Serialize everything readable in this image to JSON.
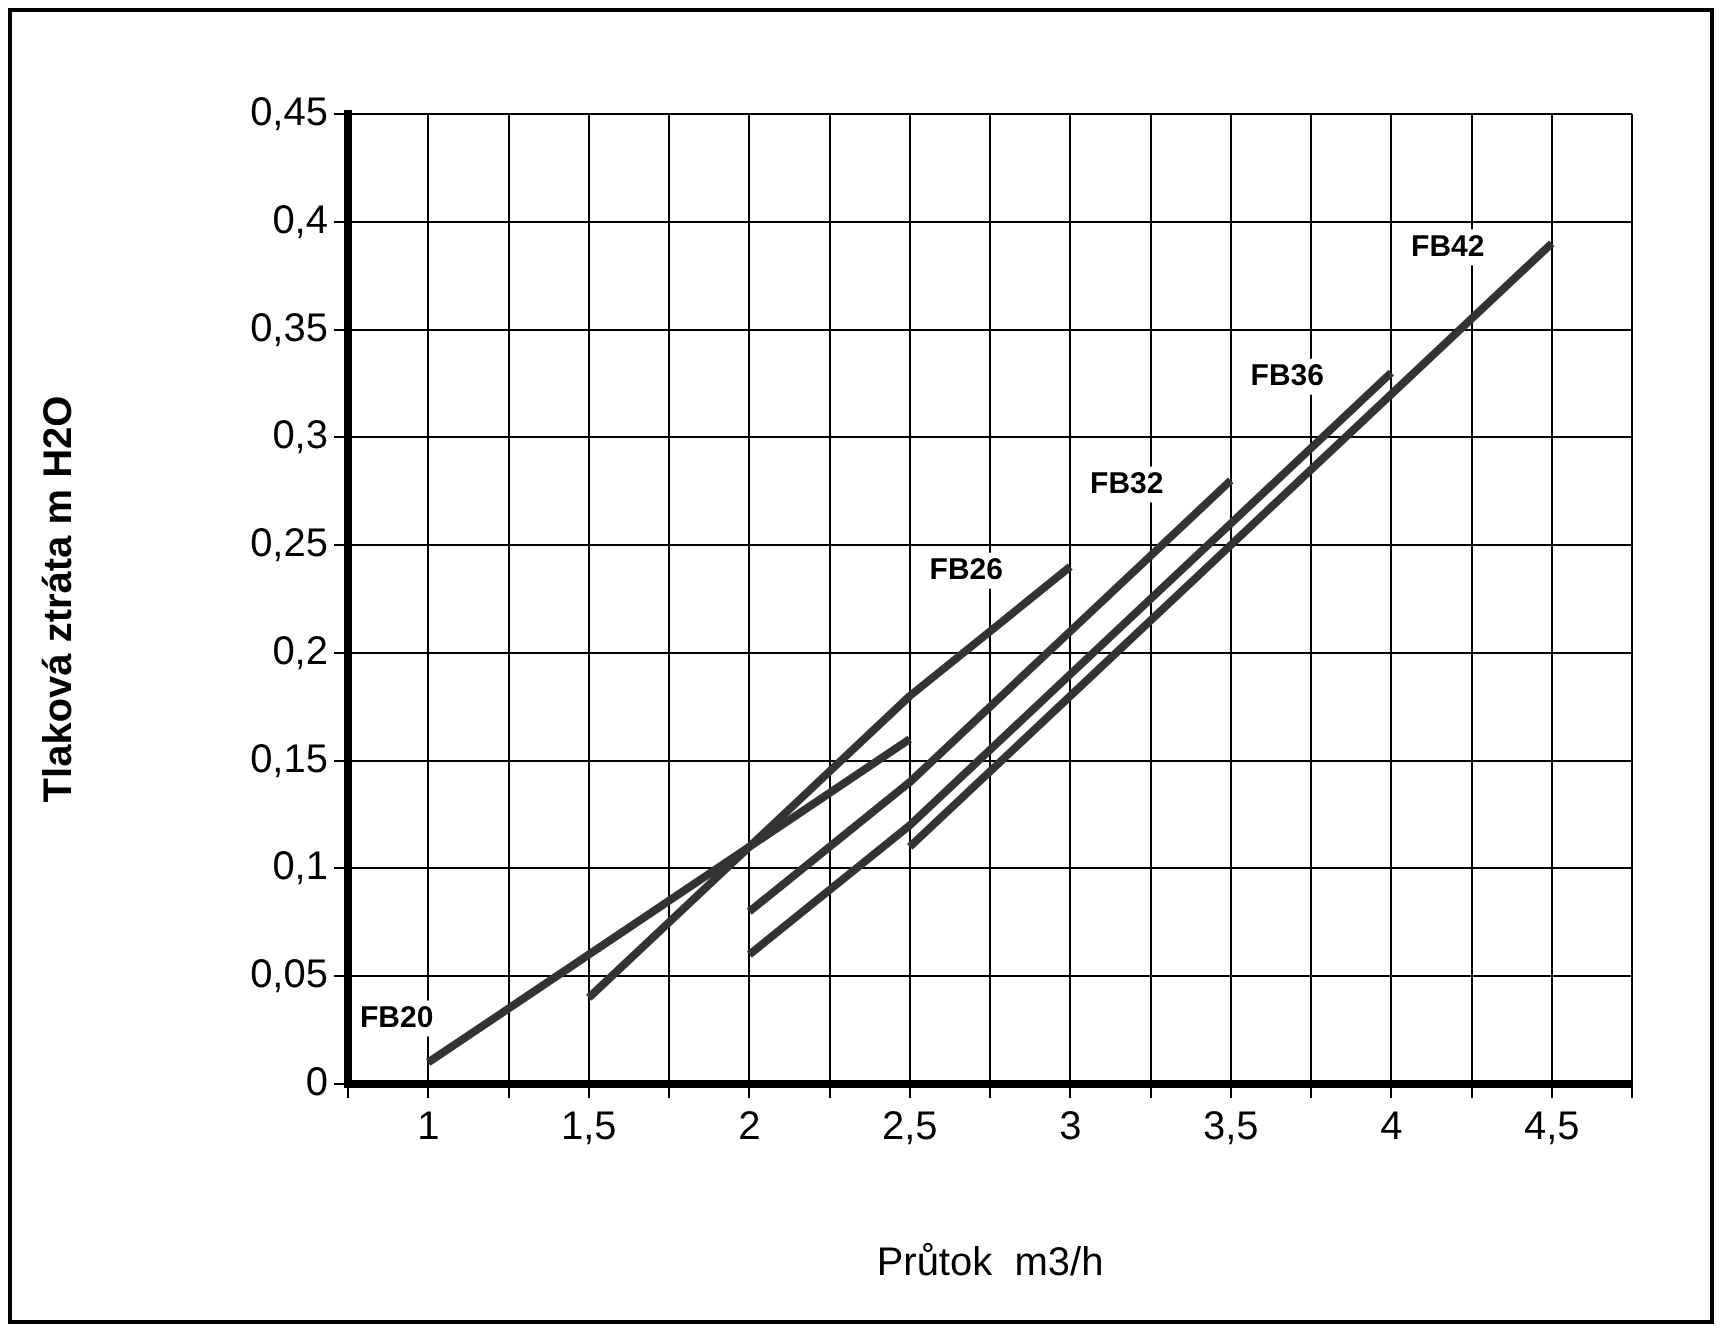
{
  "chart_data": {
    "type": "line",
    "xlabel": "Průtok  m3/h",
    "ylabel": "Tlaková ztráta m H2O",
    "xlim": [
      0.75,
      4.75
    ],
    "xticks": [
      {
        "value": 0.75,
        "label": null
      },
      {
        "value": 1,
        "label": "1"
      },
      {
        "value": 1.25,
        "label": null
      },
      {
        "value": 1.5,
        "label": "1,5"
      },
      {
        "value": 1.75,
        "label": null
      },
      {
        "value": 2,
        "label": "2"
      },
      {
        "value": 2.25,
        "label": null
      },
      {
        "value": 2.5,
        "label": "2,5"
      },
      {
        "value": 2.75,
        "label": null
      },
      {
        "value": 3,
        "label": "3"
      },
      {
        "value": 3.25,
        "label": null
      },
      {
        "value": 3.5,
        "label": "3,5"
      },
      {
        "value": 3.75,
        "label": null
      },
      {
        "value": 4,
        "label": "4"
      },
      {
        "value": 4.25,
        "label": null
      },
      {
        "value": 4.5,
        "label": "4,5"
      },
      {
        "value": 4.75,
        "label": null
      }
    ],
    "ylim": [
      0,
      0.45
    ],
    "yticks": [
      0,
      {
        "value": 0.05,
        "label": "0,05"
      },
      {
        "value": 0.1,
        "label": "0,1"
      },
      {
        "value": 0.15,
        "label": "0,15"
      },
      {
        "value": 0.2,
        "label": "0,2"
      },
      {
        "value": 0.25,
        "label": "0,25"
      },
      {
        "value": 0.3,
        "label": "0,3"
      },
      {
        "value": 0.35,
        "label": "0,35"
      },
      {
        "value": 0.4,
        "label": "0,4"
      },
      {
        "value": 0.45,
        "label": "0,45"
      }
    ],
    "grid": true,
    "legend": false,
    "marker": "none",
    "line_style": "solid",
    "series": [
      {
        "color": "#333333",
        "x": [
          1,
          1.5,
          2,
          2.5
        ],
        "values": [
          0.01,
          0.06,
          0.11,
          0.16
        ]
      },
      {
        "color": "#333333",
        "x": [
          1.5,
          2,
          2.5,
          3
        ],
        "values": [
          0.04,
          0.11,
          0.18,
          0.24
        ]
      },
      {
        "color": "#333333",
        "x": [
          2,
          2.5,
          3,
          3.5
        ],
        "values": [
          0.08,
          0.14,
          0.21,
          0.28
        ]
      },
      {
        "color": "#333333",
        "x": [
          2,
          2.5,
          3,
          3.5,
          4
        ],
        "values": [
          0.06,
          0.12,
          0.19,
          0.26,
          0.33
        ]
      },
      {
        "color": "#333333",
        "x": [
          2.5,
          3,
          3.5,
          4,
          4.5
        ],
        "values": [
          0.11,
          0.18,
          0.25,
          0.32,
          0.39
        ]
      }
    ],
    "annotations": [
      {
        "text": "FB20",
        "x": 1,
        "y": 0.01
      },
      {
        "text": "FB26",
        "x": 3,
        "y": 0.24
      },
      {
        "text": "FB32",
        "x": 3.5,
        "y": 0.28
      },
      {
        "text": "FB36",
        "x": 4,
        "y": 0.33
      },
      {
        "text": "FB42",
        "x": 4.5,
        "y": 0.39
      }
    ]
  }
}
